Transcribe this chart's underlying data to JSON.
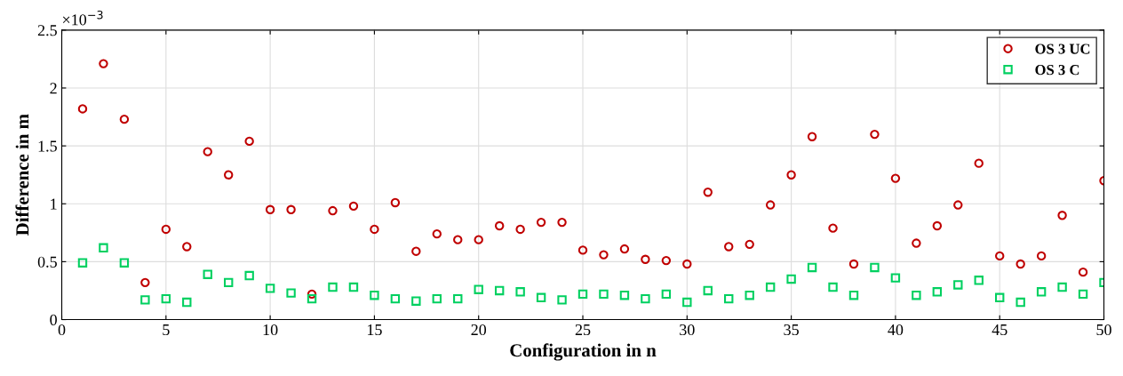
{
  "chart_data": {
    "type": "scatter",
    "xlabel": "Configuration in n",
    "ylabel": "Difference in m",
    "annotations": [
      "×10$^{−3}$"
    ],
    "x": [
      1,
      2,
      3,
      4,
      5,
      6,
      7,
      8,
      9,
      10,
      11,
      12,
      13,
      14,
      15,
      16,
      17,
      18,
      19,
      20,
      21,
      22,
      23,
      24,
      25,
      26,
      27,
      28,
      29,
      30,
      31,
      32,
      33,
      34,
      35,
      36,
      37,
      38,
      39,
      40,
      41,
      42,
      43,
      44,
      45,
      46,
      47,
      48,
      49,
      50
    ],
    "series": [
      {
        "name": "OS 3 UC",
        "color": "#c00000",
        "marker": "circle",
        "values": [
          1.82,
          2.21,
          1.73,
          0.32,
          0.78,
          0.63,
          1.45,
          1.25,
          1.54,
          0.95,
          0.95,
          0.22,
          0.94,
          0.98,
          0.78,
          1.01,
          0.59,
          0.74,
          0.69,
          0.69,
          0.81,
          0.78,
          0.84,
          0.84,
          0.6,
          0.56,
          0.61,
          0.52,
          0.51,
          0.48,
          1.1,
          0.63,
          0.65,
          0.99,
          1.25,
          1.58,
          0.79,
          0.48,
          1.6,
          1.22,
          0.66,
          0.81,
          0.99,
          1.35,
          0.55,
          0.48,
          0.55,
          0.9,
          0.41,
          1.2
        ]
      },
      {
        "name": "OS 3 C",
        "color": "#00d060",
        "marker": "square",
        "values": [
          0.49,
          0.62,
          0.49,
          0.17,
          0.18,
          0.15,
          0.39,
          0.32,
          0.38,
          0.27,
          0.23,
          0.18,
          0.28,
          0.28,
          0.21,
          0.18,
          0.16,
          0.18,
          0.18,
          0.26,
          0.25,
          0.24,
          0.19,
          0.17,
          0.22,
          0.22,
          0.21,
          0.18,
          0.22,
          0.15,
          0.25,
          0.18,
          0.21,
          0.28,
          0.35,
          0.45,
          0.28,
          0.21,
          0.45,
          0.36,
          0.21,
          0.24,
          0.3,
          0.34,
          0.19,
          0.15,
          0.24,
          0.28,
          0.22,
          0.32
        ]
      }
    ],
    "xlim": [
      0,
      50
    ],
    "xticks": [
      0,
      5,
      10,
      15,
      20,
      25,
      30,
      35,
      40,
      45,
      50
    ],
    "ylim": [
      0,
      2.5
    ],
    "yticks": [
      0,
      0.5,
      1,
      1.5,
      2,
      2.5
    ],
    "grid": true,
    "legend": "top right"
  }
}
